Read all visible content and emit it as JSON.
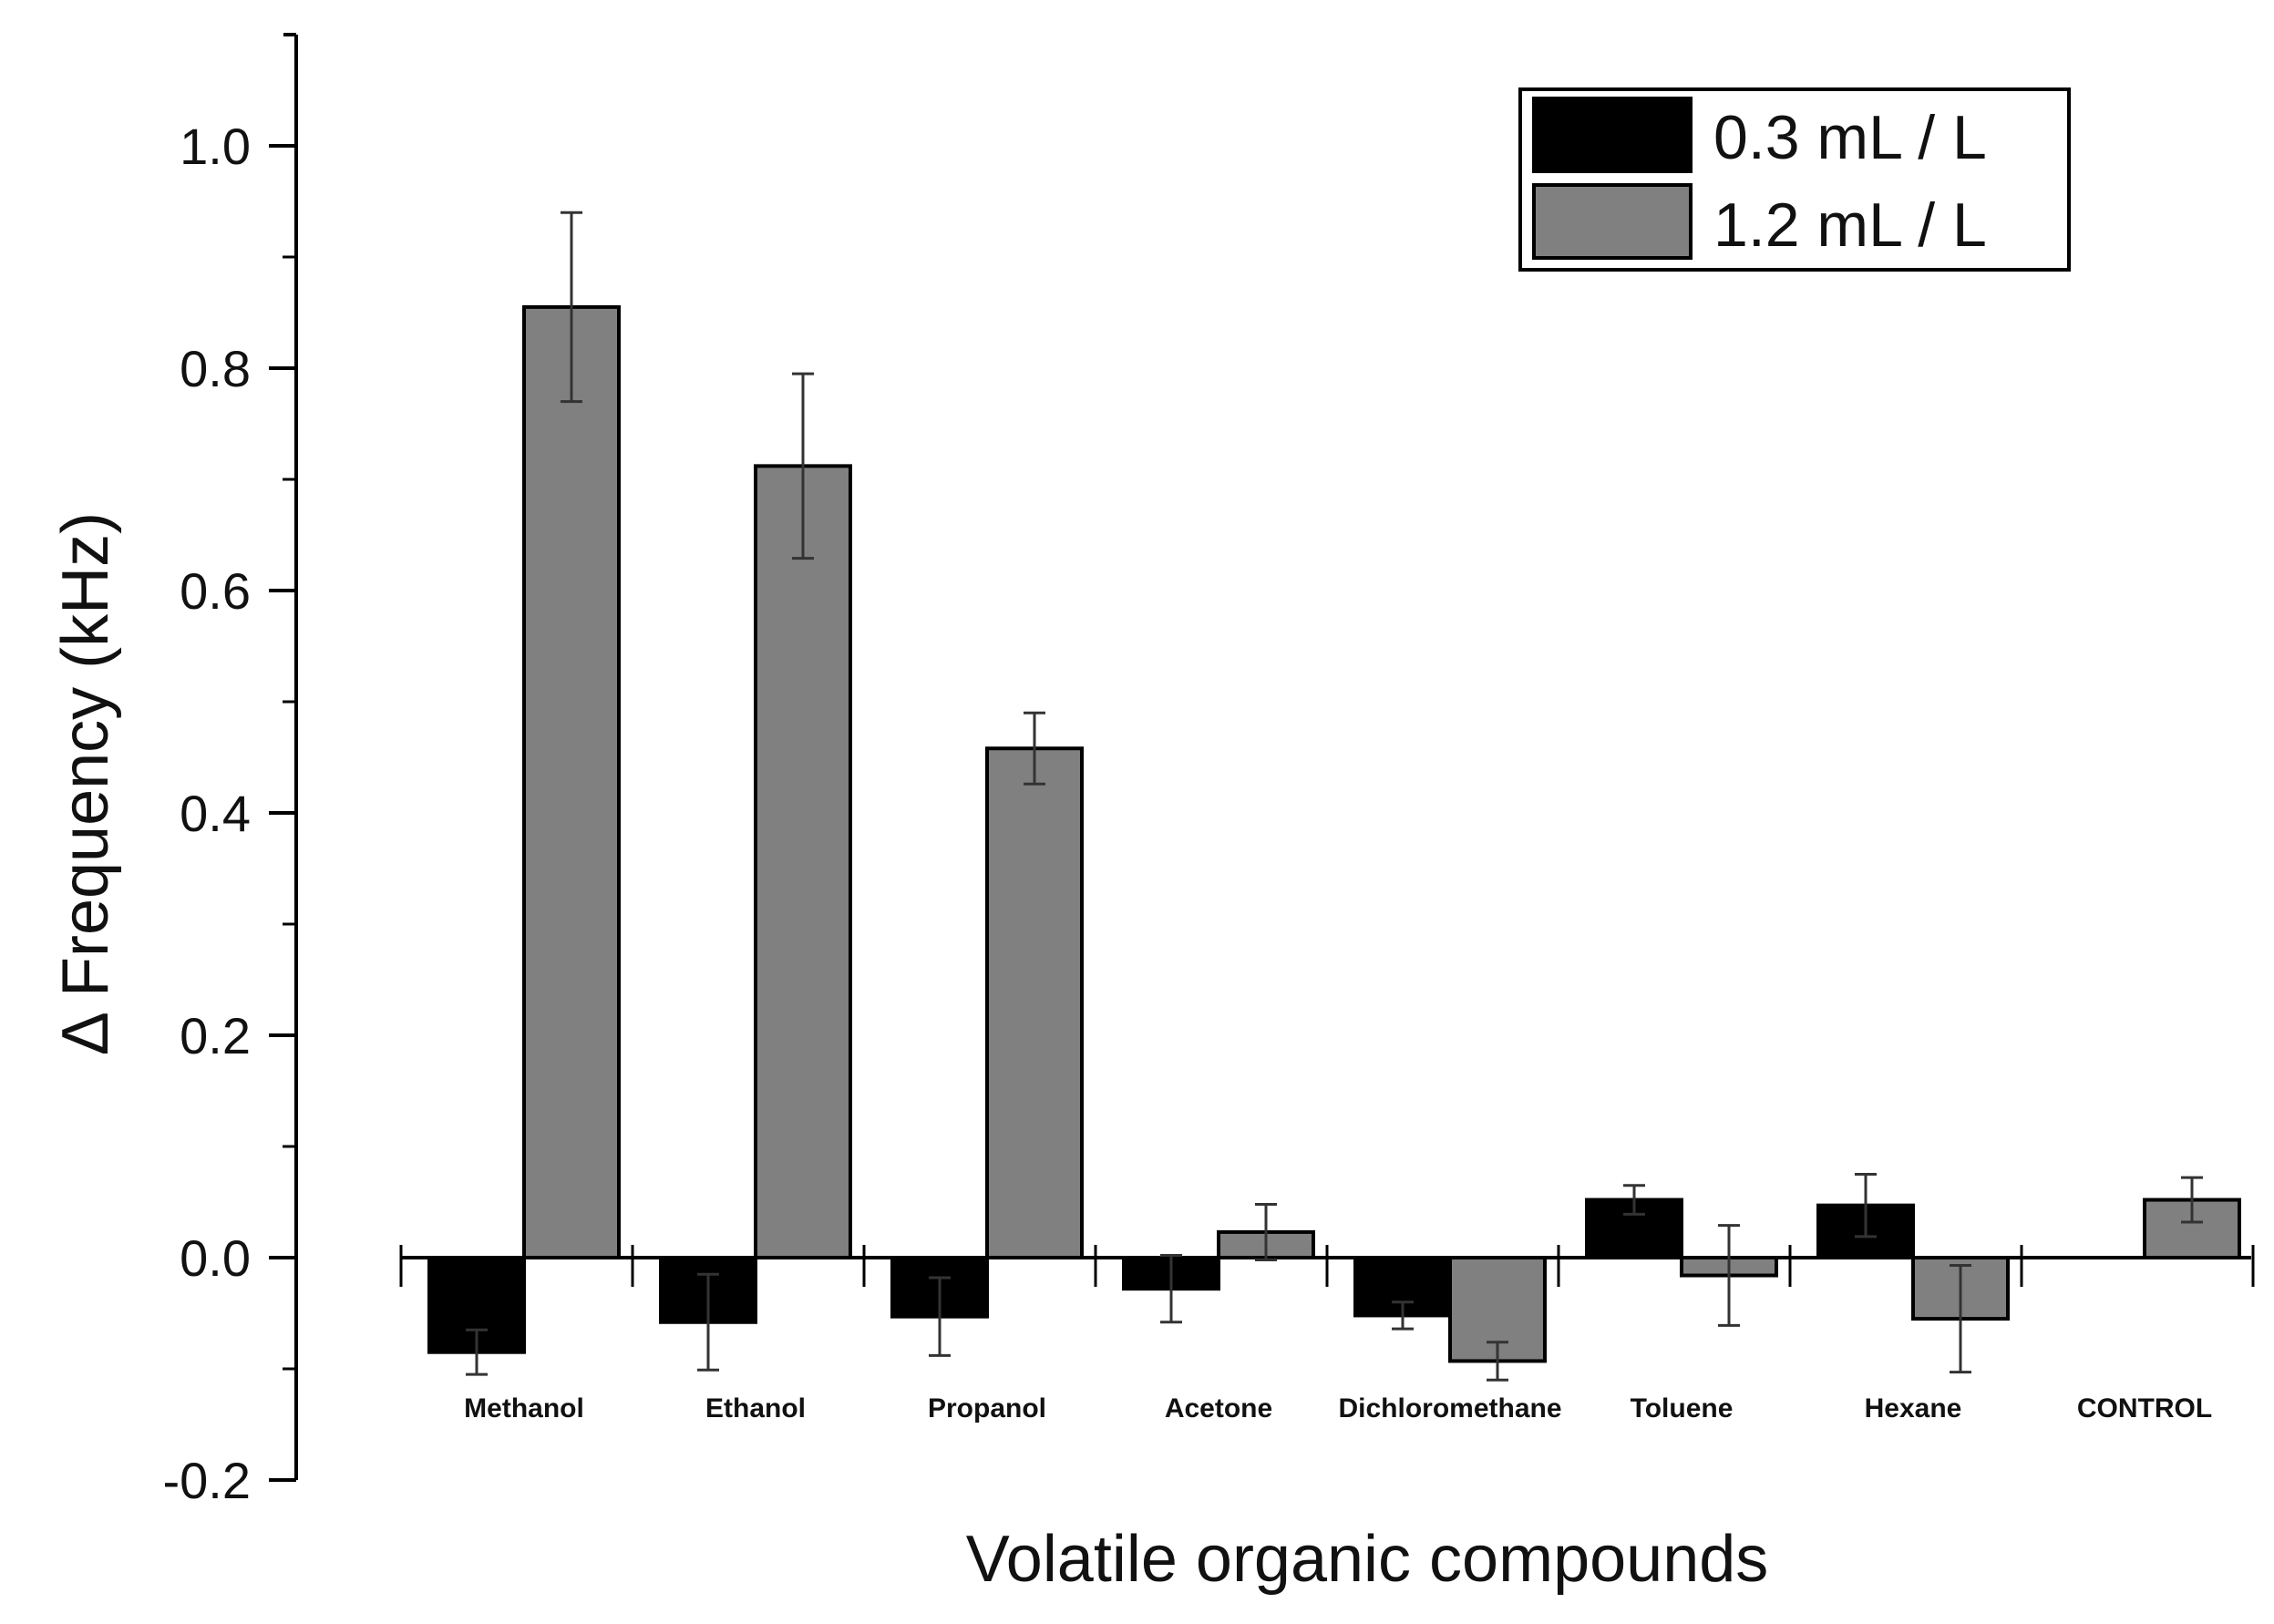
{
  "chart_data": {
    "type": "bar",
    "xlabel": "Volatile organic compounds",
    "ylabel": "Δ Frequency (kHz)",
    "ylim": [
      -0.2,
      1.1
    ],
    "yticks": [
      -0.2,
      0.0,
      0.2,
      0.4,
      0.6,
      0.8,
      1.0
    ],
    "ytick_labels": [
      "-0.2",
      "0.0",
      "0.2",
      "0.4",
      "0.6",
      "0.8",
      "1.0"
    ],
    "categories": [
      "Methanol",
      "Ethanol",
      "Propanol",
      "Acetone",
      "Dichloromethane",
      "Toluene",
      "Hexane",
      "CONTROL"
    ],
    "series": [
      {
        "name": "0.3 mL / L",
        "color": "#000000",
        "values": [
          -0.085,
          -0.058,
          -0.053,
          -0.028,
          -0.052,
          0.052,
          0.047,
          null
        ],
        "errors": [
          0.02,
          0.043,
          0.035,
          0.03,
          0.012,
          0.013,
          0.028,
          null
        ]
      },
      {
        "name": "1.2 mL / L",
        "color": "#808080",
        "values": [
          0.855,
          0.712,
          0.458,
          0.023,
          -0.093,
          -0.016,
          -0.055,
          0.052
        ],
        "errors": [
          0.085,
          0.083,
          0.032,
          0.025,
          0.017,
          0.045,
          0.048,
          0.02
        ]
      }
    ],
    "legend": {
      "position": "top-right"
    },
    "grid": false
  }
}
